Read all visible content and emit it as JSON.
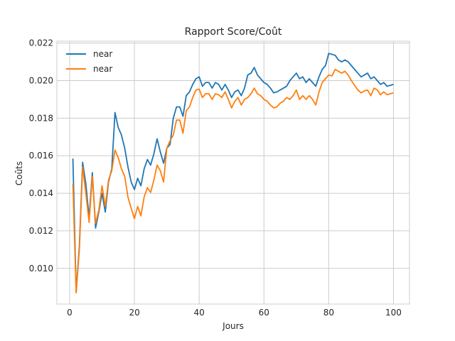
{
  "chart_data": {
    "type": "line",
    "title": "Rapport Score/Coût",
    "xlabel": "Jours",
    "ylabel": "Coûts",
    "xlim": [
      -3.95,
      104.95
    ],
    "ylim": [
      0.0081,
      0.0221
    ],
    "xticks": [
      0,
      20,
      40,
      60,
      80,
      100
    ],
    "xtick_labels": [
      "0",
      "20",
      "40",
      "60",
      "80",
      "100"
    ],
    "yticks": [
      0.01,
      0.012,
      0.014,
      0.016,
      0.018,
      0.02,
      0.022
    ],
    "ytick_labels": [
      "0.010",
      "0.012",
      "0.014",
      "0.016",
      "0.018",
      "0.020",
      "0.022"
    ],
    "grid": true,
    "legend_position": "top-left",
    "x": [
      1,
      2,
      3,
      4,
      5,
      6,
      7,
      8,
      9,
      10,
      11,
      12,
      13,
      14,
      15,
      16,
      17,
      18,
      19,
      20,
      21,
      22,
      23,
      24,
      25,
      26,
      27,
      28,
      29,
      30,
      31,
      32,
      33,
      34,
      35,
      36,
      37,
      38,
      39,
      40,
      41,
      42,
      43,
      44,
      45,
      46,
      47,
      48,
      49,
      50,
      51,
      52,
      53,
      54,
      55,
      56,
      57,
      58,
      59,
      60,
      61,
      62,
      63,
      64,
      65,
      66,
      67,
      68,
      69,
      70,
      71,
      72,
      73,
      74,
      75,
      76,
      77,
      78,
      79,
      80,
      81,
      82,
      83,
      84,
      85,
      86,
      87,
      88,
      89,
      90,
      91,
      92,
      93,
      94,
      95,
      96,
      97,
      98,
      99,
      100
    ],
    "series": [
      {
        "name": "near",
        "color": "#1f77b4",
        "values": [
          0.01585,
          0.00875,
          0.0112,
          0.01565,
          0.0145,
          0.0127,
          0.0151,
          0.01215,
          0.013,
          0.014,
          0.013,
          0.0146,
          0.0153,
          0.0183,
          0.0175,
          0.0171,
          0.0164,
          0.0154,
          0.0146,
          0.0142,
          0.0148,
          0.0144,
          0.0153,
          0.0158,
          0.0155,
          0.0161,
          0.0169,
          0.0162,
          0.0156,
          0.0164,
          0.0166,
          0.018,
          0.0186,
          0.0186,
          0.0181,
          0.0192,
          0.0194,
          0.0198,
          0.0201,
          0.0202,
          0.0197,
          0.0199,
          0.0199,
          0.0196,
          0.0199,
          0.0198,
          0.0195,
          0.0198,
          0.0195,
          0.0191,
          0.0194,
          0.0195,
          0.0192,
          0.0196,
          0.0203,
          0.0204,
          0.0207,
          0.0203,
          0.0201,
          0.0199,
          0.0198,
          0.0196,
          0.01935,
          0.0194,
          0.0195,
          0.0196,
          0.0197,
          0.02,
          0.0202,
          0.0204,
          0.0201,
          0.0202,
          0.0199,
          0.0201,
          0.0199,
          0.0197,
          0.0202,
          0.0206,
          0.0208,
          0.02145,
          0.0214,
          0.02135,
          0.0211,
          0.021,
          0.0211,
          0.021,
          0.0208,
          0.0206,
          0.0204,
          0.0202,
          0.0203,
          0.0204,
          0.0201,
          0.0202,
          0.02,
          0.0198,
          0.0199,
          0.0197,
          0.01975,
          0.0198
        ]
      },
      {
        "name": "near",
        "color": "#ff7f0e",
        "values": [
          0.0145,
          0.0087,
          0.011,
          0.0154,
          0.014,
          0.01245,
          0.0149,
          0.0124,
          0.0131,
          0.0144,
          0.0133,
          0.0147,
          0.0152,
          0.0163,
          0.0159,
          0.0153,
          0.0149,
          0.0138,
          0.0132,
          0.01265,
          0.0133,
          0.0128,
          0.0138,
          0.0143,
          0.01405,
          0.0147,
          0.0155,
          0.0152,
          0.0146,
          0.0164,
          0.0168,
          0.0171,
          0.0179,
          0.0179,
          0.0172,
          0.0184,
          0.0186,
          0.0191,
          0.0195,
          0.01955,
          0.0191,
          0.0193,
          0.0193,
          0.019,
          0.0193,
          0.01925,
          0.0191,
          0.0194,
          0.019,
          0.01855,
          0.0189,
          0.0191,
          0.0187,
          0.019,
          0.0191,
          0.0193,
          0.0196,
          0.0193,
          0.0192,
          0.019,
          0.0189,
          0.0187,
          0.01855,
          0.0186,
          0.0188,
          0.0189,
          0.0191,
          0.019,
          0.0192,
          0.0195,
          0.019,
          0.0192,
          0.019,
          0.0192,
          0.019,
          0.0187,
          0.0194,
          0.0199,
          0.0201,
          0.0203,
          0.02025,
          0.0206,
          0.0205,
          0.0204,
          0.0205,
          0.0203,
          0.02,
          0.01975,
          0.0195,
          0.01935,
          0.01945,
          0.0195,
          0.0192,
          0.0196,
          0.0195,
          0.01925,
          0.0194,
          0.01925,
          0.0193,
          0.01935
        ]
      }
    ]
  }
}
